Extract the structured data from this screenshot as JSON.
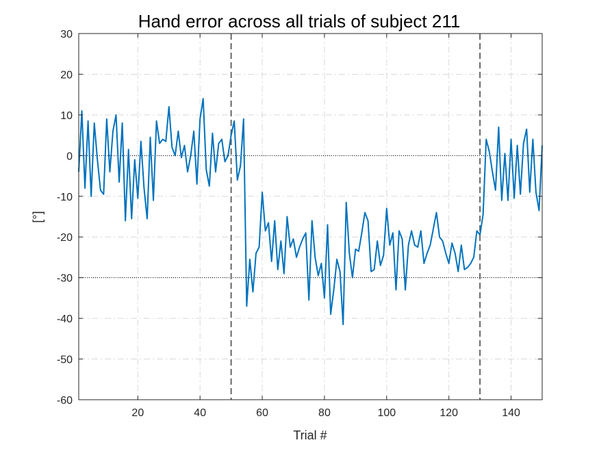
{
  "chart_data": {
    "type": "line",
    "title": "Hand error across all trials of subject 211",
    "xlabel": "Trial #",
    "ylabel": "[°]",
    "xlim": [
      1,
      150
    ],
    "ylim": [
      -60,
      30
    ],
    "xticks": [
      20,
      40,
      60,
      80,
      100,
      120,
      140
    ],
    "yticks": [
      -60,
      -50,
      -40,
      -30,
      -20,
      -10,
      0,
      10,
      20,
      30
    ],
    "grid": true,
    "line_color": "#0072BD",
    "reference_lines_horizontal": [
      0,
      -30
    ],
    "phase_boundaries_vertical": [
      50,
      130
    ],
    "series": [
      {
        "x": [
          1,
          2,
          3,
          4,
          5,
          6,
          7,
          8,
          9,
          10,
          11,
          12,
          13,
          14,
          15,
          16,
          17,
          18,
          19,
          20,
          21,
          22,
          23,
          24,
          25,
          26,
          27,
          28,
          29,
          30,
          31,
          32,
          33,
          34,
          35,
          36,
          37,
          38,
          39,
          40,
          41,
          42,
          43,
          44,
          45,
          46,
          47,
          48,
          49,
          50,
          51,
          52,
          53,
          54,
          55,
          56,
          57,
          58,
          59,
          60,
          61,
          62,
          63,
          64,
          65,
          66,
          67,
          68,
          69,
          70,
          71,
          72,
          73,
          74,
          75,
          76,
          77,
          78,
          79,
          80,
          81,
          82,
          83,
          84,
          85,
          86,
          87,
          88,
          89,
          90,
          91,
          92,
          93,
          94,
          95,
          96,
          97,
          98,
          99,
          100,
          101,
          102,
          103,
          104,
          105,
          106,
          107,
          108,
          109,
          110,
          111,
          112,
          113,
          114,
          115,
          116,
          117,
          118,
          119,
          120,
          121,
          122,
          123,
          124,
          125,
          126,
          127,
          128,
          129,
          130,
          131,
          132,
          133,
          134,
          135,
          136,
          137,
          138,
          139,
          140,
          141,
          142,
          143,
          144,
          145,
          146,
          147,
          148,
          149,
          150
        ],
        "y": [
          -4,
          11,
          -8,
          8.5,
          -10,
          8,
          -1,
          -8.5,
          -9.5,
          9,
          -4,
          6,
          10,
          -6.5,
          8,
          -16,
          1.5,
          -15.5,
          -1,
          -10.5,
          3.5,
          -8,
          -15.5,
          4.5,
          -11,
          8.5,
          3,
          4,
          3.5,
          12,
          2,
          0,
          6,
          -0.5,
          2.5,
          -4,
          0,
          6,
          -7,
          9,
          14,
          -3.5,
          -7.5,
          5.5,
          -4,
          3,
          4,
          -1.5,
          0,
          5,
          8.5,
          -6,
          -2.5,
          9,
          -37,
          -25.5,
          -33.5,
          -24,
          -22.5,
          -9,
          -18.5,
          -16.5,
          -26,
          -16,
          -28,
          -21,
          -29,
          -15,
          -22.5,
          -20.5,
          -25,
          -22.5,
          -20.5,
          -19,
          -35.5,
          -16,
          -25,
          -29.5,
          -26.5,
          -35,
          -17,
          -39,
          -33,
          -25.5,
          -28.5,
          -41.5,
          -11.5,
          -24,
          -30,
          -23,
          -23.5,
          -19,
          -14,
          -16,
          -28.5,
          -28,
          -21,
          -27,
          -24.5,
          -13,
          -22,
          -19,
          -33,
          -18.5,
          -20.5,
          -33,
          -22,
          -18.5,
          -22,
          -22.5,
          -18.5,
          -26.5,
          -24,
          -22,
          -18,
          -14,
          -20,
          -21,
          -24,
          -26.5,
          -21.5,
          -24,
          -28.5,
          -22,
          -28,
          -27.5,
          -26.5,
          -25,
          -18.5,
          -19.5,
          -14.5,
          4,
          1,
          -4,
          -8.5,
          7,
          -11,
          0.5,
          -11,
          4,
          -10.5,
          2.5,
          -9.5,
          3,
          6.5,
          -9,
          4,
          -9,
          -13.5,
          2.5
        ]
      }
    ]
  }
}
